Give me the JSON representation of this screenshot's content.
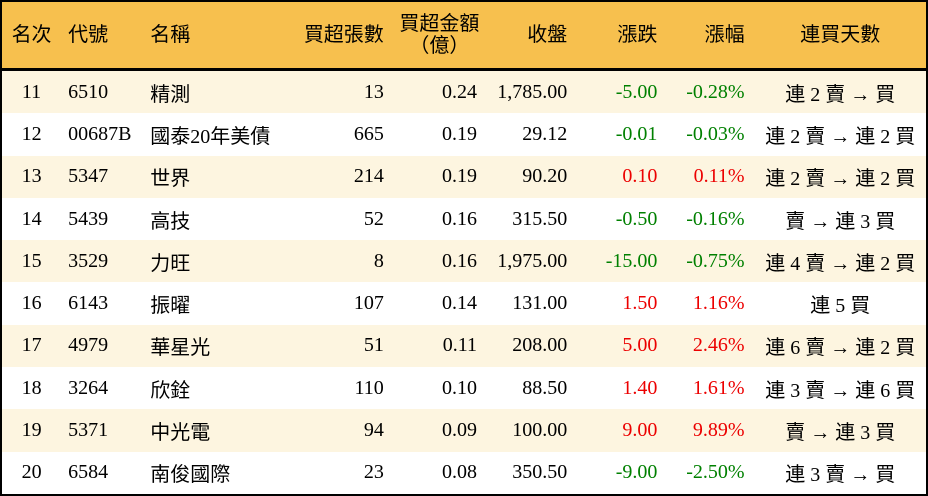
{
  "colors": {
    "header_bg": "#F7C04E",
    "row_alt_bg": "#FDF5E0",
    "row_bg": "#FFFFFF",
    "up_red": "#EC0000",
    "down_green": "#008000",
    "border_black": "#000000"
  },
  "chart_data": {
    "type": "table",
    "title": "",
    "columns": [
      {
        "key": "rank",
        "label": "名次"
      },
      {
        "key": "code",
        "label": "代號"
      },
      {
        "key": "name",
        "label": "名稱"
      },
      {
        "key": "volume",
        "label": "買超張數"
      },
      {
        "key": "amount",
        "label": "買超金額",
        "sublabel": "（億）"
      },
      {
        "key": "close",
        "label": "收盤"
      },
      {
        "key": "change",
        "label": "漲跌"
      },
      {
        "key": "change_pct",
        "label": "漲幅"
      },
      {
        "key": "streak",
        "label": "連買天數"
      }
    ],
    "rows": [
      {
        "rank": "11",
        "code": "6510",
        "name": "精測",
        "volume": "13",
        "amount": "0.24",
        "close": "1,785.00",
        "change": "-5.00",
        "change_pct": "-0.28%",
        "streak": "連 2 賣 → 買"
      },
      {
        "rank": "12",
        "code": "00687B",
        "name": "國泰20年美債",
        "volume": "665",
        "amount": "0.19",
        "close": "29.12",
        "change": "-0.01",
        "change_pct": "-0.03%",
        "streak": "連 2 賣 → 連 2 買"
      },
      {
        "rank": "13",
        "code": "5347",
        "name": "世界",
        "volume": "214",
        "amount": "0.19",
        "close": "90.20",
        "change": "0.10",
        "change_pct": "0.11%",
        "streak": "連 2 賣 → 連 2 買"
      },
      {
        "rank": "14",
        "code": "5439",
        "name": "高技",
        "volume": "52",
        "amount": "0.16",
        "close": "315.50",
        "change": "-0.50",
        "change_pct": "-0.16%",
        "streak": "賣 → 連 3 買"
      },
      {
        "rank": "15",
        "code": "3529",
        "name": "力旺",
        "volume": "8",
        "amount": "0.16",
        "close": "1,975.00",
        "change": "-15.00",
        "change_pct": "-0.75%",
        "streak": "連 4 賣 → 連 2 買"
      },
      {
        "rank": "16",
        "code": "6143",
        "name": "振曜",
        "volume": "107",
        "amount": "0.14",
        "close": "131.00",
        "change": "1.50",
        "change_pct": "1.16%",
        "streak": "連 5 買"
      },
      {
        "rank": "17",
        "code": "4979",
        "name": "華星光",
        "volume": "51",
        "amount": "0.11",
        "close": "208.00",
        "change": "5.00",
        "change_pct": "2.46%",
        "streak": "連 6 賣 → 連 2 買"
      },
      {
        "rank": "18",
        "code": "3264",
        "name": "欣銓",
        "volume": "110",
        "amount": "0.10",
        "close": "88.50",
        "change": "1.40",
        "change_pct": "1.61%",
        "streak": "連 3 賣 → 連 6 買"
      },
      {
        "rank": "19",
        "code": "5371",
        "name": "中光電",
        "volume": "94",
        "amount": "0.09",
        "close": "100.00",
        "change": "9.00",
        "change_pct": "9.89%",
        "streak": "賣 → 連 3 買"
      },
      {
        "rank": "20",
        "code": "6584",
        "name": "南俊國際",
        "volume": "23",
        "amount": "0.08",
        "close": "350.50",
        "change": "-9.00",
        "change_pct": "-2.50%",
        "streak": "連 3 賣 → 買"
      }
    ]
  }
}
